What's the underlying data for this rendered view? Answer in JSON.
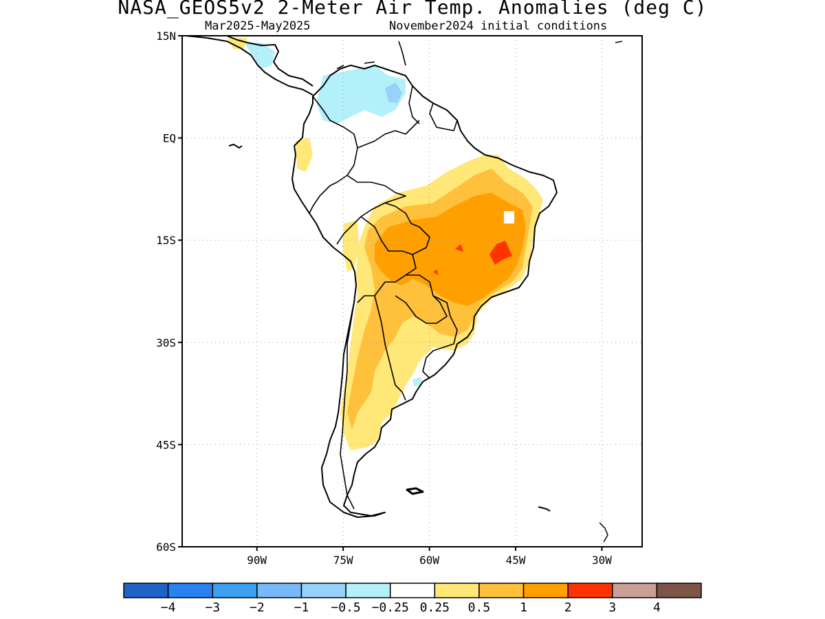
{
  "header": {
    "title": "NASA_GEOS5v2 2-Meter Air Temp. Anomalies (deg C)",
    "period": "Mar2025-May2025",
    "init": "November2024 initial conditions"
  },
  "map": {
    "region": "South America",
    "lon_range": [
      -103,
      -23
    ],
    "lat_range": [
      -60,
      15
    ],
    "grid": "dotted",
    "lat_ticks": [
      {
        "value": 15,
        "label": "15N"
      },
      {
        "value": 0,
        "label": "EQ"
      },
      {
        "value": -15,
        "label": "15S"
      },
      {
        "value": -30,
        "label": "30S"
      },
      {
        "value": -45,
        "label": "45S"
      },
      {
        "value": -60,
        "label": "60S"
      }
    ],
    "lon_ticks": [
      {
        "value": -90,
        "label": "90W"
      },
      {
        "value": -75,
        "label": "75W"
      },
      {
        "value": -60,
        "label": "60W"
      },
      {
        "value": -45,
        "label": "45W"
      },
      {
        "value": -30,
        "label": "30W"
      }
    ],
    "anomaly_regions": [
      {
        "name": "central-brazil-orange",
        "level": "1 to 2",
        "color": "#ffa000"
      },
      {
        "name": "brazil-red-spot",
        "level": "2 to 3",
        "color": "#ff3300"
      },
      {
        "name": "northern-argentina-light-orange",
        "level": "0.5 to 1",
        "color": "#ffc03c"
      },
      {
        "name": "northern-south-america-light-blue",
        "level": "-0.5 to -0.25",
        "color": "#aaeef8"
      }
    ]
  },
  "colorbar": {
    "colors": [
      "#1e64c8",
      "#2882f0",
      "#3ca0f0",
      "#78b9fa",
      "#96d2fa",
      "#b4f0fa",
      "#ffffff",
      "#ffe878",
      "#ffc03c",
      "#ffa000",
      "#ff3300",
      "#c8a096",
      "#7d5546"
    ],
    "labels": [
      "-4",
      "-3",
      "-2",
      "-1",
      "-0.5",
      "-0.25",
      "0.25",
      "0.5",
      "1",
      "2",
      "3",
      "4"
    ]
  }
}
